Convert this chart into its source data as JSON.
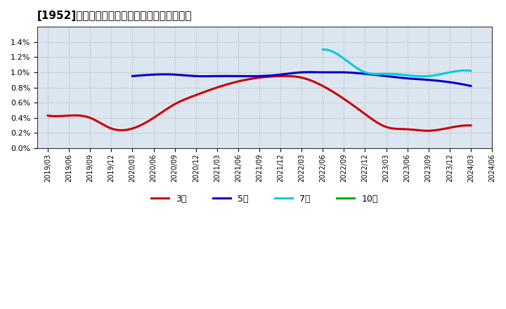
{
  "title": "[1952]　当期純利益マージンの標準偏差の推移",
  "ylim": [
    0.0,
    0.016
  ],
  "yticks": [
    0.0,
    0.002,
    0.004,
    0.006,
    0.008,
    0.01,
    0.012,
    0.014
  ],
  "background_color": "#ffffff",
  "plot_bg_color": "#dce6f0",
  "grid_color": "#aaaaaa",
  "series": {
    "3年": {
      "color": "#cc0000",
      "xs": [
        0,
        1,
        2,
        3,
        4,
        5,
        6,
        7,
        8,
        9,
        10,
        11,
        12,
        13,
        14,
        15,
        16,
        17,
        18,
        19,
        20
      ],
      "values": [
        0.0043,
        0.0043,
        0.004,
        0.0026,
        0.0026,
        0.004,
        0.0058,
        0.007,
        0.008,
        0.0088,
        0.0093,
        0.0095,
        0.0093,
        0.0082,
        0.0065,
        0.0045,
        0.0028,
        0.0025,
        0.0023,
        0.0027,
        0.003
      ]
    },
    "5年": {
      "color": "#0000cc",
      "xs": [
        4,
        5,
        6,
        7,
        8,
        9,
        10,
        11,
        12,
        13,
        14,
        15,
        16,
        17,
        18,
        19,
        20
      ],
      "values": [
        0.0095,
        0.0097,
        0.0097,
        0.0095,
        0.0095,
        0.0095,
        0.0095,
        0.0097,
        0.01,
        0.01,
        0.01,
        0.0098,
        0.0095,
        0.0092,
        0.009,
        0.0087,
        0.0082
      ]
    },
    "7年": {
      "color": "#00ccdd",
      "xs": [
        13,
        14,
        15,
        16,
        17,
        18,
        19,
        20
      ],
      "values": [
        0.013,
        0.0118,
        0.01,
        0.0098,
        0.0096,
        0.0095,
        0.01,
        0.0102
      ]
    },
    "10年": {
      "color": "#00aa00",
      "xs": [],
      "values": []
    }
  },
  "legend_labels": [
    "3年",
    "5年",
    "7年",
    "10年"
  ],
  "legend_colors": [
    "#cc0000",
    "#0000cc",
    "#00ccdd",
    "#00aa00"
  ],
  "xtick_labels": [
    "2019/03",
    "2019/06",
    "2019/09",
    "2019/12",
    "2020/03",
    "2020/06",
    "2020/09",
    "2020/12",
    "2021/03",
    "2021/06",
    "2021/09",
    "2021/12",
    "2022/03",
    "2022/06",
    "2022/09",
    "2022/12",
    "2023/03",
    "2023/06",
    "2023/09",
    "2023/12",
    "2024/03",
    "2024/06"
  ]
}
